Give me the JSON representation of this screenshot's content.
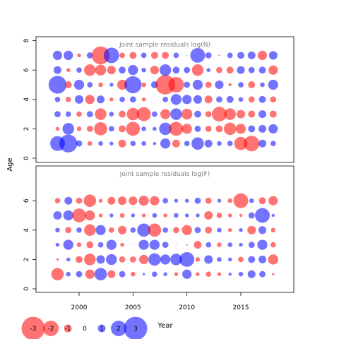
{
  "figure": {
    "ylabel": "Age",
    "xlabel": "Year",
    "x_ticks": [
      "2000",
      "2005",
      "2010",
      "2015"
    ],
    "y_ticks": [
      "0",
      "2",
      "4",
      "6",
      "8"
    ]
  },
  "colors": {
    "negative": "#ff0000",
    "positive": "#0000ff",
    "bubble_opacity": "0.55"
  },
  "legend": {
    "entries": [
      {
        "label": "-3",
        "value": -3
      },
      {
        "label": "-2",
        "value": -2
      },
      {
        "label": "-1",
        "value": -1
      },
      {
        "label": "0",
        "value": 0
      },
      {
        "label": "1",
        "value": 1
      },
      {
        "label": "2",
        "value": 2
      },
      {
        "label": "3",
        "value": 3
      }
    ]
  },
  "chart_data": [
    {
      "type": "scatter",
      "title": "Joint sample residuals log(N)",
      "xlabel": "",
      "ylabel": "Age",
      "xlim": [
        1996.5,
        2019
      ],
      "ylim": [
        -0.5,
        8.2
      ],
      "x": [
        1998,
        1999,
        2000,
        2001,
        2002,
        2003,
        2004,
        2005,
        2006,
        2007,
        2008,
        2009,
        2010,
        2011,
        2012,
        2013,
        2014,
        2015,
        2016,
        2017,
        2018
      ],
      "ages": [
        1,
        2,
        3,
        4,
        5,
        6,
        7
      ],
      "residuals": {
        "7": [
          1.2,
          1.2,
          -0.5,
          0.8,
          -2.3,
          2.0,
          -0.7,
          -0.9,
          0.7,
          -0.9,
          -0.9,
          0.7,
          0.1,
          1.9,
          0.8,
          -0.2,
          0.7,
          0.9,
          1.0,
          -1.2,
          1.1
        ],
        "6": [
          1.0,
          -0.5,
          0.7,
          -1.5,
          -1.4,
          -1.1,
          0.9,
          1.3,
          0.6,
          -1.1,
          1.5,
          0.9,
          0.8,
          -1.5,
          0.5,
          -0.8,
          -0.9,
          1.0,
          0.8,
          0.9,
          -1.2
        ],
        "5": [
          2.3,
          -0.9,
          1.3,
          0.7,
          -0.6,
          0.5,
          -1.3,
          2.2,
          -0.6,
          0.9,
          -2.5,
          -2.0,
          0.8,
          1.3,
          -0.8,
          1.1,
          -0.4,
          0.7,
          -0.9,
          0.6,
          1.3
        ],
        "4": [
          0.7,
          -0.7,
          1.1,
          -1.2,
          1.0,
          -0.5,
          0.7,
          0.8,
          -0.5,
          0.1,
          0.7,
          1.4,
          1.2,
          1.1,
          -1.0,
          0.8,
          0.9,
          0.6,
          -0.8,
          0.9,
          -0.8
        ],
        "3": [
          0.8,
          0.7,
          -0.7,
          0.8,
          -1.5,
          0.6,
          -0.9,
          -1.6,
          -1.8,
          0.7,
          -1.3,
          1.5,
          -1.4,
          0.9,
          -0.8,
          -1.9,
          -1.5,
          -1.1,
          -0.9,
          1.0,
          -0.9
        ],
        "2": [
          -0.5,
          1.5,
          -0.6,
          -0.8,
          -1.7,
          0.7,
          -0.9,
          -1.8,
          0.6,
          0.5,
          1.6,
          -1.8,
          -1.3,
          0.8,
          -0.8,
          -0.9,
          -1.6,
          -1.3,
          0.9,
          1.0,
          1.2
        ],
        "1": [
          1.9,
          2.3,
          0.8,
          -0.6,
          0.6,
          0.5,
          -1.0,
          0.7,
          0.6,
          0.4,
          1.3,
          -1.0,
          0.7,
          1.6,
          1.0,
          0.6,
          0.7,
          -1.7,
          -2.0,
          1.0,
          0.7
        ]
      }
    },
    {
      "type": "scatter",
      "title": "Joint sample residuals log(F)",
      "xlabel": "Year",
      "ylabel": "Age",
      "xlim": [
        1996.5,
        2019
      ],
      "ylim": [
        -0.5,
        7.2
      ],
      "x": [
        1998,
        1999,
        2000,
        2001,
        2002,
        2003,
        2004,
        2005,
        2006,
        2007,
        2008,
        2009,
        2010,
        2011,
        2012,
        2013,
        2014,
        2015,
        2016,
        2017,
        2018
      ],
      "ages": [
        1,
        2,
        3,
        4,
        5,
        6
      ],
      "residuals": {
        "6": [
          -0.7,
          1.0,
          -0.8,
          -1.6,
          -0.5,
          -1.0,
          -1.1,
          -1.1,
          -1.3,
          -1.2,
          0.7,
          0.5,
          0.5,
          0.8,
          -0.8,
          0.5,
          -0.6,
          -1.9,
          0.6,
          -0.9,
          -1.2
        ],
        "5": [
          1.1,
          1.3,
          -1.8,
          -1.3,
          -0.5,
          0.5,
          -0.6,
          0.5,
          -0.5,
          0.6,
          -0.5,
          0.6,
          0.5,
          0.5,
          -1.1,
          -0.7,
          -0.5,
          -0.4,
          0.8,
          1.9,
          0.4
        ],
        "4": [
          0.6,
          -0.8,
          0.7,
          -1.5,
          1.3,
          -0.7,
          -1.1,
          0.7,
          1.7,
          -1.7,
          0.7,
          -0.8,
          -1.3,
          0.8,
          -0.9,
          0.6,
          -0.5,
          0.5,
          -1.1,
          1.0,
          -0.6
        ],
        "3": [
          0.5,
          1.3,
          -0.6,
          -0.9,
          0.7,
          1.3,
          -0.5,
          0.1,
          1.3,
          1.3,
          0.8,
          0.1,
          -0.2,
          -1.0,
          0.7,
          -0.6,
          0.6,
          0.5,
          0.8,
          1.3,
          -0.7
        ],
        "2": [
          -0.3,
          0.5,
          -0.9,
          -1.5,
          1.1,
          1.4,
          -0.8,
          -0.8,
          -1.2,
          1.6,
          1.3,
          1.5,
          1.9,
          -0.6,
          1.1,
          0.6,
          0.5,
          -0.7,
          0.9,
          1.0,
          -1.3
        ],
        "1": [
          -1.6,
          0.6,
          0.8,
          -1.2,
          1.6,
          -1.0,
          0.8,
          -0.6,
          0.3,
          0.7,
          0.5,
          -0.5,
          1.2,
          -0.5,
          -0.7,
          -0.5,
          0.4,
          0.6,
          1.0,
          0.8,
          -0.3
        ]
      }
    }
  ]
}
